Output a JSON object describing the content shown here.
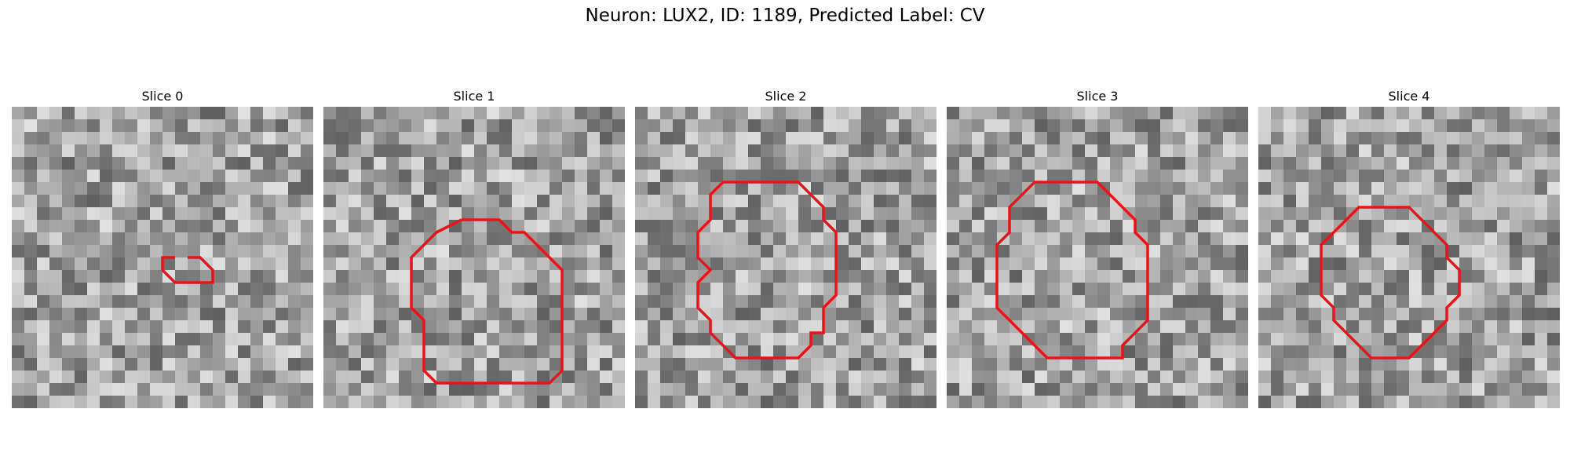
{
  "title": "Neuron: LUX2, ID: 1189, Predicted Label: CV",
  "panels": [
    {
      "title": "Slice 0",
      "contour": [
        [
          14,
          12
        ],
        [
          15,
          12
        ],
        [
          16,
          13
        ],
        [
          16,
          14
        ],
        [
          15,
          14
        ],
        [
          13,
          14
        ],
        [
          12,
          13
        ],
        [
          12,
          12
        ],
        [
          13,
          12
        ]
      ]
    },
    {
      "title": "Slice 1",
      "contour": [
        [
          11,
          9
        ],
        [
          13,
          9
        ],
        [
          14,
          9
        ],
        [
          15,
          10
        ],
        [
          16,
          10
        ],
        [
          17,
          11
        ],
        [
          18,
          12
        ],
        [
          19,
          13
        ],
        [
          19,
          15
        ],
        [
          19,
          20
        ],
        [
          19,
          21
        ],
        [
          18,
          22
        ],
        [
          14,
          22
        ],
        [
          9,
          22
        ],
        [
          8,
          21
        ],
        [
          8,
          19
        ],
        [
          8,
          17
        ],
        [
          7,
          16
        ],
        [
          7,
          12
        ],
        [
          8,
          11
        ],
        [
          9,
          10
        ],
        [
          11,
          9
        ]
      ]
    },
    {
      "title": "Slice 2",
      "contour": [
        [
          8,
          6
        ],
        [
          10,
          6
        ],
        [
          13,
          6
        ],
        [
          14,
          7
        ],
        [
          15,
          8
        ],
        [
          15,
          9
        ],
        [
          16,
          10
        ],
        [
          16,
          15
        ],
        [
          15,
          16
        ],
        [
          15,
          18
        ],
        [
          14,
          18
        ],
        [
          14,
          19
        ],
        [
          13,
          20
        ],
        [
          11,
          20
        ],
        [
          8,
          20
        ],
        [
          7,
          19
        ],
        [
          6,
          18
        ],
        [
          6,
          17
        ],
        [
          5,
          16
        ],
        [
          5,
          14
        ],
        [
          6,
          13
        ],
        [
          5,
          12
        ],
        [
          5,
          10
        ],
        [
          6,
          9
        ],
        [
          6,
          7
        ],
        [
          7,
          6
        ],
        [
          8,
          6
        ]
      ]
    },
    {
      "title": "Slice 3",
      "contour": [
        [
          8,
          6
        ],
        [
          11,
          6
        ],
        [
          12,
          6
        ],
        [
          13,
          7
        ],
        [
          14,
          8
        ],
        [
          15,
          9
        ],
        [
          15,
          10
        ],
        [
          16,
          11
        ],
        [
          16,
          17
        ],
        [
          15,
          18
        ],
        [
          14,
          19
        ],
        [
          14,
          20
        ],
        [
          13,
          20
        ],
        [
          9,
          20
        ],
        [
          8,
          20
        ],
        [
          7,
          19
        ],
        [
          6,
          18
        ],
        [
          5,
          17
        ],
        [
          4,
          16
        ],
        [
          4,
          13
        ],
        [
          4,
          11
        ],
        [
          5,
          10
        ],
        [
          5,
          8
        ],
        [
          6,
          7
        ],
        [
          7,
          6
        ],
        [
          8,
          6
        ]
      ]
    },
    {
      "title": "Slice 4",
      "contour": [
        [
          9,
          8
        ],
        [
          11,
          8
        ],
        [
          12,
          8
        ],
        [
          13,
          9
        ],
        [
          14,
          10
        ],
        [
          15,
          11
        ],
        [
          15,
          12
        ],
        [
          16,
          13
        ],
        [
          16,
          15
        ],
        [
          15,
          16
        ],
        [
          15,
          17
        ],
        [
          14,
          18
        ],
        [
          13,
          19
        ],
        [
          12,
          20
        ],
        [
          11,
          20
        ],
        [
          10,
          20
        ],
        [
          9,
          20
        ],
        [
          8,
          19
        ],
        [
          7,
          18
        ],
        [
          6,
          17
        ],
        [
          6,
          16
        ],
        [
          5,
          15
        ],
        [
          5,
          11
        ],
        [
          6,
          10
        ],
        [
          7,
          9
        ],
        [
          8,
          8
        ],
        [
          9,
          8
        ]
      ]
    }
  ]
}
